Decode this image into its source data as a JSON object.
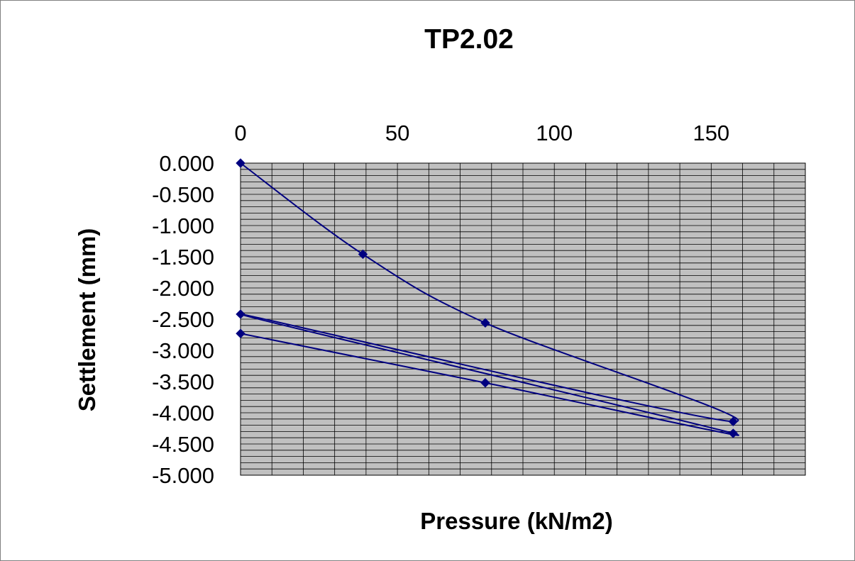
{
  "chart_data": {
    "type": "scatter",
    "title": "TP2.02",
    "xlabel": "Pressure (kN/m2)",
    "ylabel": "Settlement (mm)",
    "xlim": [
      0,
      180
    ],
    "ylim": [
      -5.0,
      0.0
    ],
    "x_ticks": [
      0,
      50,
      100,
      150
    ],
    "x_tick_labels": [
      "0",
      "50",
      "100",
      "150"
    ],
    "y_ticks": [
      0.0,
      -0.5,
      -1.0,
      -1.5,
      -2.0,
      -2.5,
      -3.0,
      -3.5,
      -4.0,
      -4.5,
      -5.0
    ],
    "y_tick_labels": [
      "0.000",
      "-0.500",
      "-1.000",
      "-1.500",
      "-2.000",
      "-2.500",
      "-3.000",
      "-3.500",
      "-4.000",
      "-4.500",
      "-5.000"
    ],
    "x_axis_position": "top",
    "grid": true,
    "plot_background": "#c0c0c0",
    "series": [
      {
        "color": "#000080",
        "marker": "diamond",
        "smooth": true,
        "points": [
          {
            "x": 0,
            "y": 0.0
          },
          {
            "x": 39,
            "y": -1.46
          },
          {
            "x": 78,
            "y": -2.56
          },
          {
            "x": 157,
            "y": -4.14
          },
          {
            "x": 0,
            "y": -2.42
          },
          {
            "x": 157,
            "y": -4.33
          },
          {
            "x": 78,
            "y": -3.52
          },
          {
            "x": 0,
            "y": -2.73
          }
        ]
      }
    ]
  }
}
